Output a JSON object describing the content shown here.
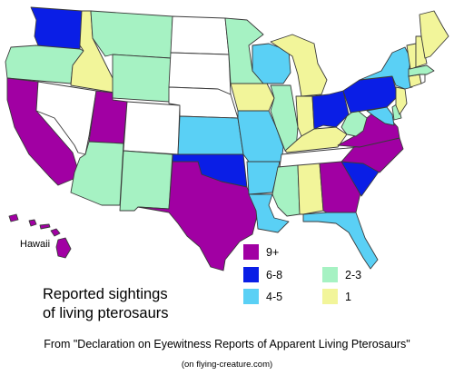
{
  "title_lines": [
    "Reported sightings",
    "of living pterosaurs"
  ],
  "inset_label": "Hawaii",
  "source": "From \"Declaration on Eyewitness Reports of Apparent Living Pterosaurs\"",
  "site": "(on flying-creature.com)",
  "legend": [
    {
      "label": "9+",
      "color": "#a100a3",
      "icon": "purple-swatch"
    },
    {
      "label": "6-8",
      "color": "#0a1ee6",
      "icon": "blue-swatch"
    },
    {
      "label": "4-5",
      "color": "#5ad0f5",
      "icon": "light-blue-swatch"
    },
    {
      "label": "2-3",
      "color": "#a6f2c3",
      "icon": "mint-swatch"
    },
    {
      "label": "1",
      "color": "#f2f59a",
      "icon": "yellow-swatch"
    }
  ],
  "state_categories": {
    "9+": [
      "California",
      "Utah",
      "Texas",
      "Virginia",
      "North Carolina",
      "Georgia",
      "Hawaii"
    ],
    "6-8": [
      "Washington",
      "Oklahoma",
      "Ohio",
      "Pennsylvania",
      "South Carolina"
    ],
    "4-5": [
      "Kansas",
      "Missouri",
      "Arkansas",
      "Louisiana",
      "Wisconsin",
      "New York",
      "Florida",
      "Maryland"
    ],
    "2-3": [
      "Oregon",
      "Montana",
      "Wyoming",
      "Arizona",
      "New Mexico",
      "Minnesota",
      "Illinois",
      "Mississippi",
      "West Virginia",
      "Massachusetts",
      "Delaware"
    ],
    "1": [
      "Idaho",
      "Iowa",
      "Michigan",
      "Indiana",
      "Kentucky",
      "Alabama",
      "New Jersey",
      "Maine",
      "Vermont",
      "New Hampshire",
      "Connecticut"
    ],
    "none": [
      "Nevada",
      "Colorado",
      "North Dakota",
      "South Dakota",
      "Nebraska",
      "Tennessee",
      "Rhode Island"
    ]
  }
}
